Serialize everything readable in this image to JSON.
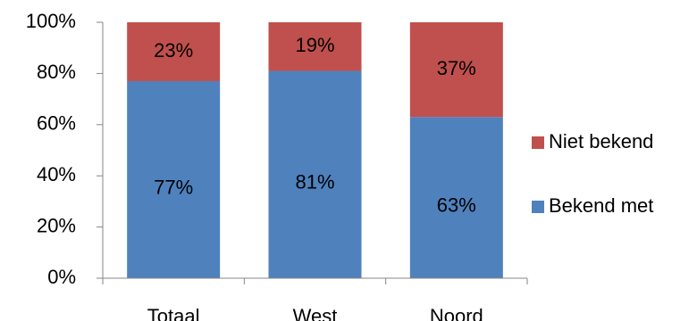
{
  "chart_data": {
    "type": "bar",
    "stacked": true,
    "categories": [
      "Totaal",
      "West",
      "Noord"
    ],
    "series": [
      {
        "name": "Bekend met",
        "values": [
          77,
          81,
          63
        ],
        "color": "#4F81BD",
        "labels": [
          "77%",
          "81%",
          "63%"
        ]
      },
      {
        "name": "Niet bekend",
        "values": [
          23,
          19,
          37
        ],
        "color": "#C0504D",
        "labels": [
          "23%",
          "19%",
          "37%"
        ]
      }
    ],
    "ylim": [
      0,
      100
    ],
    "yticks": [
      "0%",
      "20%",
      "40%",
      "60%",
      "80%",
      "100%"
    ],
    "grid": false,
    "legend_position": "right",
    "legend_order": [
      "Niet bekend",
      "Bekend met"
    ]
  }
}
